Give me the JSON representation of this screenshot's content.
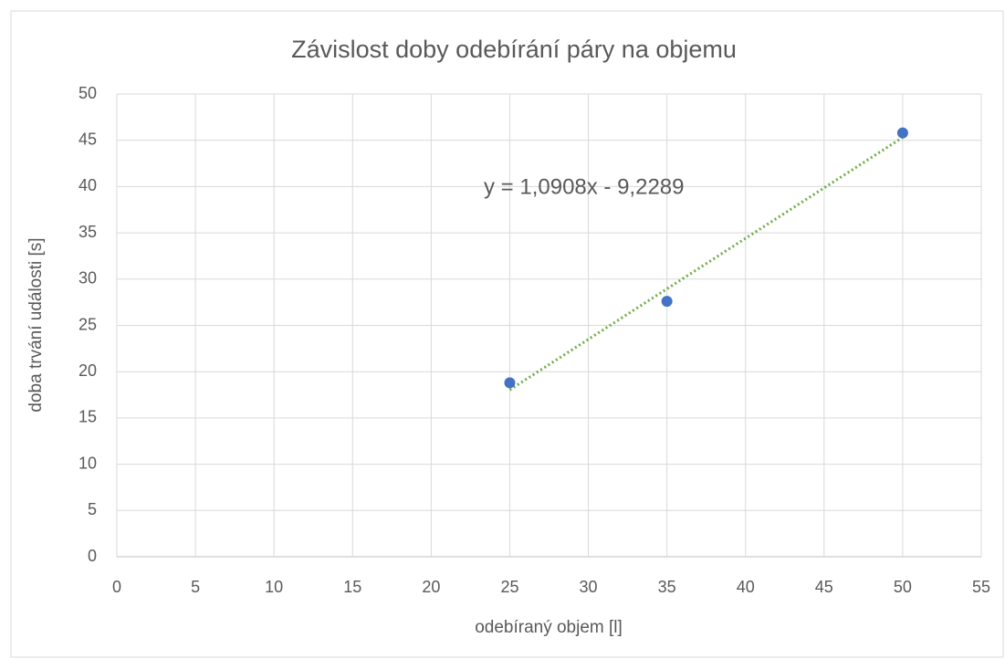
{
  "chart_data": {
    "type": "scatter",
    "title": "Závislost doby odebírání páry na objemu",
    "x_label": "odebíraný objem [l]",
    "y_label": "doba trvání události [s]",
    "x": [
      25,
      35,
      50
    ],
    "values": [
      18.8,
      27.6,
      45.8
    ],
    "color": "#4472c4",
    "xlim": [
      0,
      55
    ],
    "xticks": [
      0,
      5,
      10,
      15,
      20,
      25,
      30,
      35,
      40,
      45,
      50,
      55
    ],
    "ylim": [
      0,
      50
    ],
    "yticks": [
      0,
      5,
      10,
      15,
      20,
      25,
      30,
      35,
      40,
      45,
      50
    ],
    "grid": true,
    "trendline": {
      "slope": 1.0908,
      "intercept": -9.2289,
      "color": "#70ad47",
      "label": "y = 1,0908x - 9,2289"
    }
  }
}
